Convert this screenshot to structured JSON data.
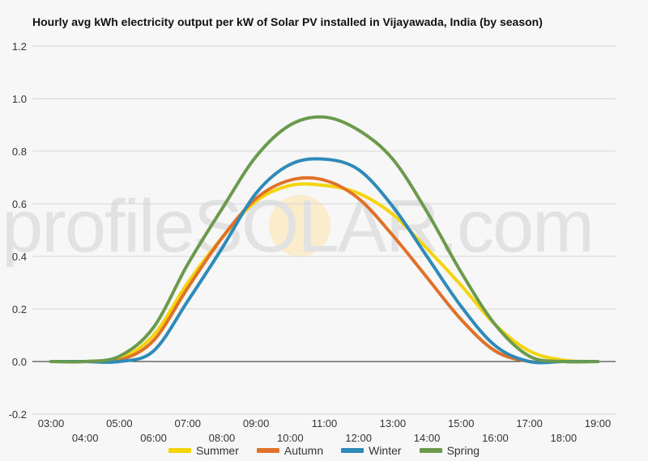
{
  "chart_data": {
    "type": "line",
    "title": "Hourly avg kWh electricity output per kW of Solar PV installed in Vijayawada, India (by season)",
    "ylim": [
      -0.2,
      1.2
    ],
    "yticks": [
      "1.2",
      "1.0",
      "0.8",
      "0.6",
      "0.4",
      "0.2",
      "0.0",
      "-0.2"
    ],
    "x_hours": [
      3,
      4,
      5,
      6,
      7,
      8,
      9,
      10,
      11,
      12,
      13,
      14,
      15,
      16,
      17,
      18,
      19
    ],
    "xticks_upper": [
      "03:00",
      "05:00",
      "07:00",
      "09:00",
      "11:00",
      "13:00",
      "15:00",
      "17:00",
      "19:00"
    ],
    "xticks_lower": [
      "04:00",
      "06:00",
      "08:00",
      "10:00",
      "12:00",
      "14:00",
      "16:00",
      "18:00"
    ],
    "grid": true,
    "legend_position": "bottom",
    "watermark": "profileSOLAR.com",
    "series": [
      {
        "name": "Summer",
        "color": "#f5d40c",
        "values": [
          0,
          0,
          0.01,
          0.1,
          0.3,
          0.47,
          0.61,
          0.67,
          0.67,
          0.64,
          0.56,
          0.43,
          0.29,
          0.14,
          0.04,
          0.005,
          0
        ]
      },
      {
        "name": "Autumn",
        "color": "#e07128",
        "values": [
          0,
          0,
          0.005,
          0.08,
          0.28,
          0.47,
          0.62,
          0.69,
          0.69,
          0.62,
          0.48,
          0.32,
          0.16,
          0.04,
          0,
          0,
          0
        ]
      },
      {
        "name": "Winter",
        "color": "#2e8ab8",
        "values": [
          0,
          0,
          0,
          0.04,
          0.23,
          0.43,
          0.64,
          0.75,
          0.77,
          0.73,
          0.59,
          0.4,
          0.21,
          0.06,
          0,
          0,
          0
        ]
      },
      {
        "name": "Spring",
        "color": "#6b9a4c",
        "values": [
          0,
          0,
          0.02,
          0.13,
          0.37,
          0.58,
          0.78,
          0.9,
          0.93,
          0.88,
          0.77,
          0.57,
          0.34,
          0.14,
          0.02,
          0,
          0
        ]
      }
    ]
  }
}
